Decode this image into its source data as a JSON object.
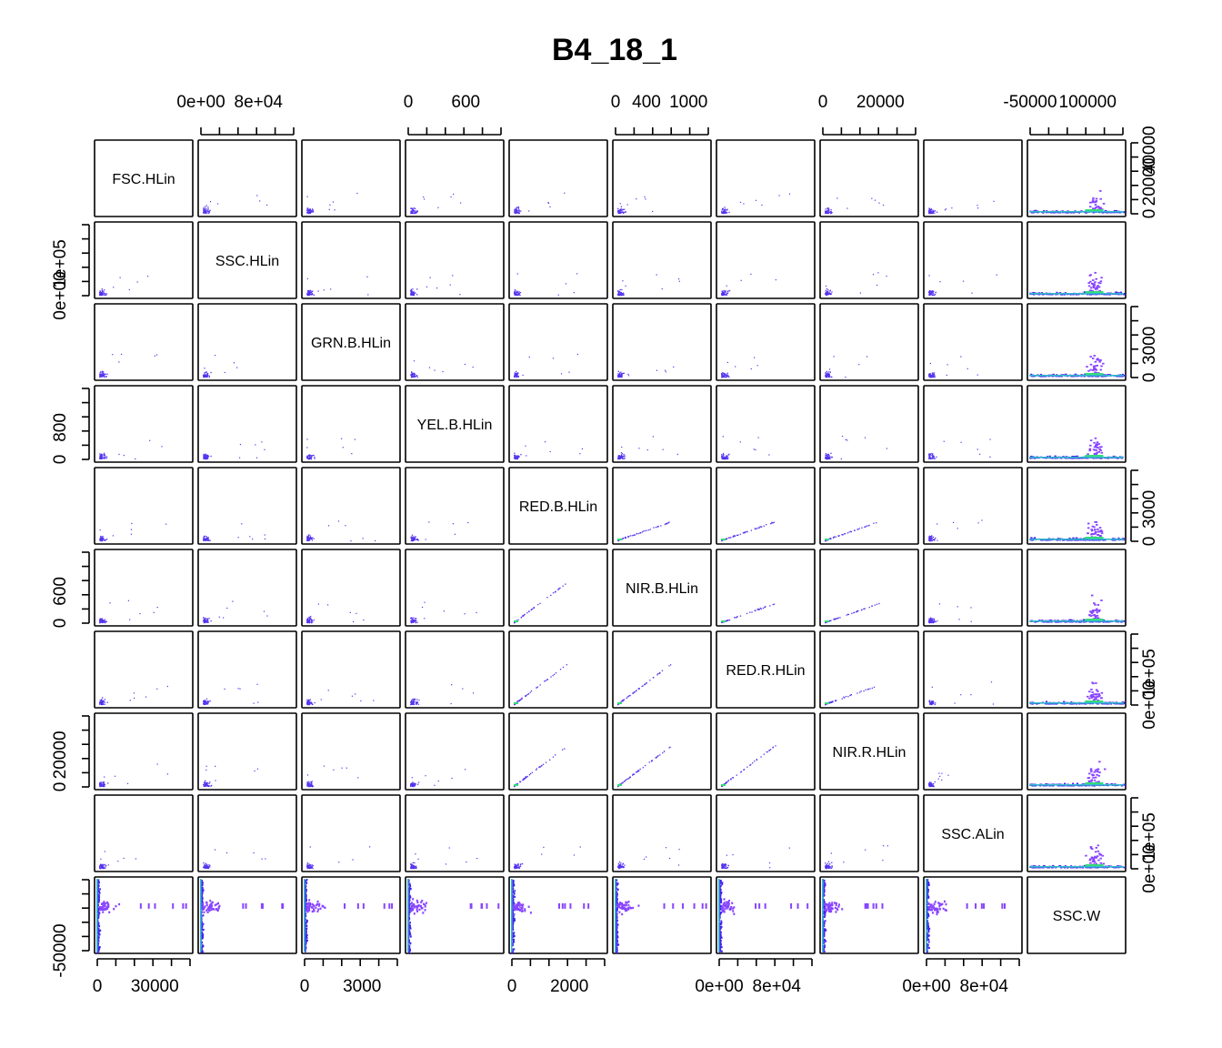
{
  "chart_data": {
    "type": "scatter-matrix",
    "title": "B4_18_1",
    "variables": [
      "FSC.HLin",
      "SSC.HLin",
      "GRN.B.HLin",
      "YEL.B.HLin",
      "RED.B.HLin",
      "NIR.B.HLin",
      "RED.R.HLin",
      "NIR.R.HLin",
      "SSC.ALin",
      "SSC.W"
    ],
    "axes": [
      {
        "variable": "FSC.HLin",
        "side": "bottom",
        "tick_labels": [
          "0",
          "30000"
        ]
      },
      {
        "variable": "SSC.HLin",
        "side": "top",
        "tick_labels": [
          "0e+00",
          "8e+04"
        ]
      },
      {
        "variable": "GRN.B.HLin",
        "side": "bottom",
        "tick_labels": [
          "0",
          "3000"
        ]
      },
      {
        "variable": "YEL.B.HLin",
        "side": "top",
        "tick_labels": [
          "0",
          "600"
        ]
      },
      {
        "variable": "RED.B.HLin",
        "side": "bottom",
        "tick_labels": [
          "0",
          "2000"
        ]
      },
      {
        "variable": "NIR.B.HLin",
        "side": "top",
        "tick_labels": [
          "0",
          "400",
          "1000"
        ]
      },
      {
        "variable": "RED.R.HLin",
        "side": "bottom",
        "tick_labels": [
          "0e+00",
          "8e+04"
        ]
      },
      {
        "variable": "NIR.R.HLin",
        "side": "top",
        "tick_labels": [
          "0",
          "20000"
        ]
      },
      {
        "variable": "SSC.ALin",
        "side": "bottom",
        "tick_labels": [
          "0e+00",
          "8e+04"
        ]
      },
      {
        "variable": "SSC.W",
        "side": "top",
        "tick_labels": [
          "-50000",
          "100000"
        ]
      },
      {
        "variable": "FSC.HLin",
        "side": "right",
        "tick_labels": [
          "0",
          "20000",
          "40000"
        ]
      },
      {
        "variable": "SSC.HLin",
        "side": "left",
        "tick_labels": [
          "0e+00",
          "1e+05"
        ]
      },
      {
        "variable": "GRN.B.HLin",
        "side": "right",
        "tick_labels": [
          "0",
          "3000"
        ]
      },
      {
        "variable": "YEL.B.HLin",
        "side": "left",
        "tick_labels": [
          "0",
          "800"
        ]
      },
      {
        "variable": "RED.B.HLin",
        "side": "right",
        "tick_labels": [
          "0",
          "3000"
        ]
      },
      {
        "variable": "NIR.B.HLin",
        "side": "left",
        "tick_labels": [
          "0",
          "600"
        ]
      },
      {
        "variable": "RED.R.HLin",
        "side": "right",
        "tick_labels": [
          "0e+00",
          "1e+05"
        ]
      },
      {
        "variable": "NIR.R.HLin",
        "side": "left",
        "tick_labels": [
          "0",
          "20000"
        ]
      },
      {
        "variable": "SSC.ALin",
        "side": "right",
        "tick_labels": [
          "0e+00",
          "1e+05"
        ]
      },
      {
        "variable": "SSC.W",
        "side": "left",
        "tick_labels": [
          "-50000"
        ]
      }
    ],
    "point_color": "#5533ee",
    "density_colors": [
      "#4422ee",
      "#8844ff",
      "#33bbcc",
      "#33dd77",
      "#ffcc33"
    ]
  }
}
